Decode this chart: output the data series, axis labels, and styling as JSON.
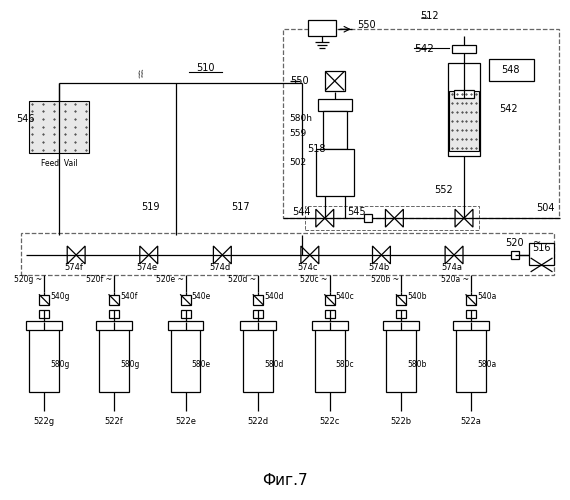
{
  "title": "Фиг.7",
  "bg_color": "#ffffff",
  "line_color": "#000000",
  "dashed_color": "#666666",
  "labels": {
    "550_top": "550",
    "512": "512",
    "510": "510",
    "518": "518",
    "546": "546",
    "feed_vail": "Feed  Vail",
    "519": "519",
    "517": "517",
    "550": "550",
    "580h": "580h",
    "559": "559",
    "502": "502",
    "544": "544",
    "545": "545",
    "552": "552",
    "504": "504",
    "542a": "542",
    "542b": "542",
    "548": "548",
    "516": "516",
    "520": "520",
    "574f": "574f",
    "574e": "574e",
    "574d": "574d",
    "574c": "574c",
    "574b": "574b",
    "574a": "574a",
    "520g": "520g",
    "520f": "520f",
    "520e": "520e",
    "520d": "520d",
    "520c": "520c",
    "520b": "520b",
    "520a": "520a",
    "540g": "540g",
    "540f": "540f",
    "540e": "540e",
    "540d": "540d",
    "540c": "540c",
    "540b": "540b",
    "540a": "540a",
    "580g": "580g",
    "580f": "580g",
    "580e": "580e",
    "580d": "580d",
    "580c": "580c",
    "580b": "580b",
    "580a": "580a",
    "522g": "522g",
    "522f": "522f",
    "522e": "522e",
    "522d": "522d",
    "522c": "522c",
    "522b": "522b",
    "522a": "522a"
  }
}
